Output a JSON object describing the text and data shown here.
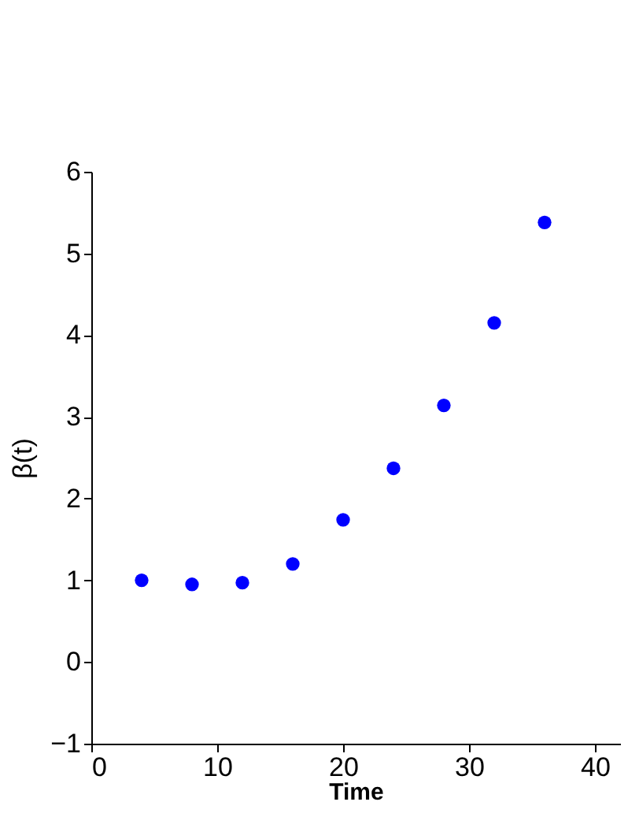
{
  "chart_data": {
    "type": "scatter",
    "xlabel": "Time",
    "ylabel": "β(t)",
    "x": [
      4,
      8,
      12,
      16,
      20,
      24,
      28,
      32,
      36
    ],
    "series": [
      {
        "color": "#0000ff",
        "values": [
          1.0,
          0.95,
          0.97,
          1.2,
          1.74,
          2.37,
          3.14,
          4.15,
          5.38
        ]
      }
    ],
    "xlim": [
      0,
      42
    ],
    "xticks": [
      0,
      10,
      20,
      30,
      40
    ],
    "ylim": [
      -1,
      6
    ],
    "yticks": [
      -1,
      0,
      1,
      2,
      3,
      4,
      5,
      6
    ],
    "grid": false,
    "legend": false,
    "marker": "circle"
  }
}
